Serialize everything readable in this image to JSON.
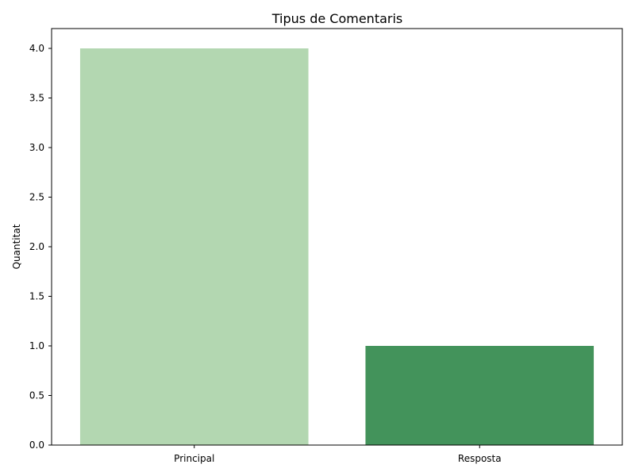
{
  "chart_data": {
    "type": "bar",
    "title": "Tipus de Comentaris",
    "xlabel": "",
    "ylabel": "Quantitat",
    "categories": [
      "Principal",
      "Resposta"
    ],
    "values": [
      4,
      1
    ],
    "bar_colors": [
      "#b3d7b1",
      "#43935b"
    ],
    "ylim": [
      0,
      4.2
    ],
    "yticks": [
      0.0,
      0.5,
      1.0,
      1.5,
      2.0,
      2.5,
      3.0,
      3.5,
      4.0
    ],
    "ytick_labels": [
      "0.0",
      "0.5",
      "1.0",
      "1.5",
      "2.0",
      "2.5",
      "3.0",
      "3.5",
      "4.0"
    ],
    "grid": false,
    "legend": "none"
  }
}
